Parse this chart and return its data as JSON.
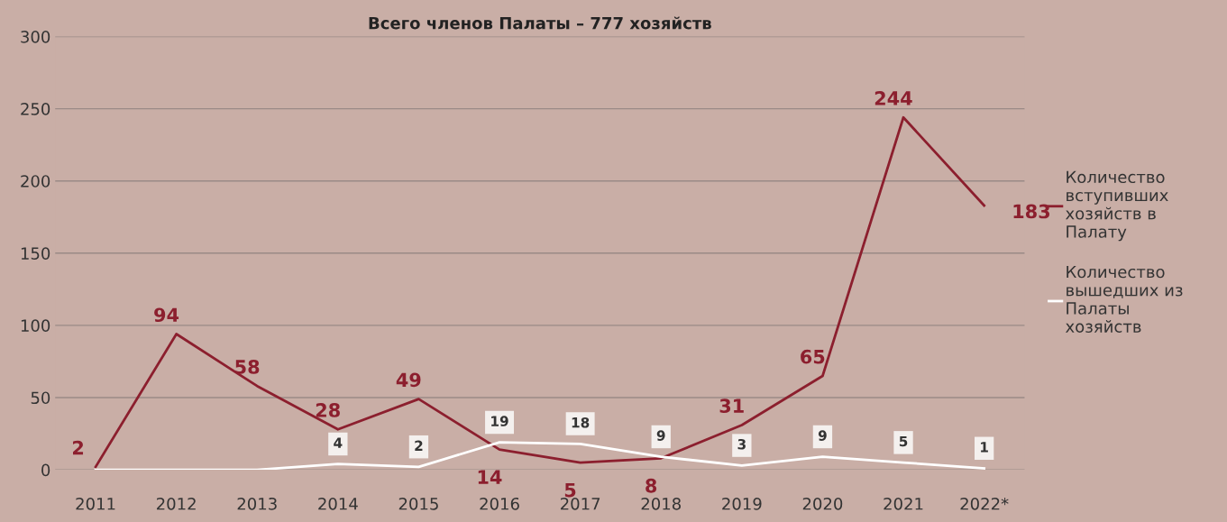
{
  "chart_data": {
    "type": "line",
    "title": "Всего членов Палаты – 777 хозяйств",
    "categories": [
      "2011",
      "2012",
      "2013",
      "2014",
      "2015",
      "2016",
      "2017",
      "2018",
      "2019",
      "2020",
      "2021",
      "2022*"
    ],
    "series": [
      {
        "name": "Количество вступивших хозяйств в Палату",
        "color": "#8c1f2e",
        "values": [
          2,
          94,
          58,
          28,
          49,
          14,
          5,
          8,
          31,
          65,
          244,
          183
        ],
        "value_labels": [
          "2",
          "94",
          "58",
          "28",
          "49",
          "14",
          "5",
          "8",
          "31",
          "65",
          "244",
          "183"
        ]
      },
      {
        "name": "Количество вышедших из Палаты хозяйств",
        "color": "#ffffff",
        "values": [
          0,
          0,
          0,
          4,
          2,
          19,
          18,
          9,
          3,
          9,
          5,
          1
        ],
        "value_labels": [
          null,
          null,
          null,
          "4",
          "2",
          "19",
          "18",
          "9",
          "3",
          "9",
          "5",
          "1"
        ]
      }
    ],
    "ylim": [
      0,
      300
    ],
    "yticks": [
      0,
      50,
      100,
      150,
      200,
      250,
      300
    ],
    "grid": "y",
    "legend": "right",
    "marker": "none",
    "line_style": "solid"
  }
}
